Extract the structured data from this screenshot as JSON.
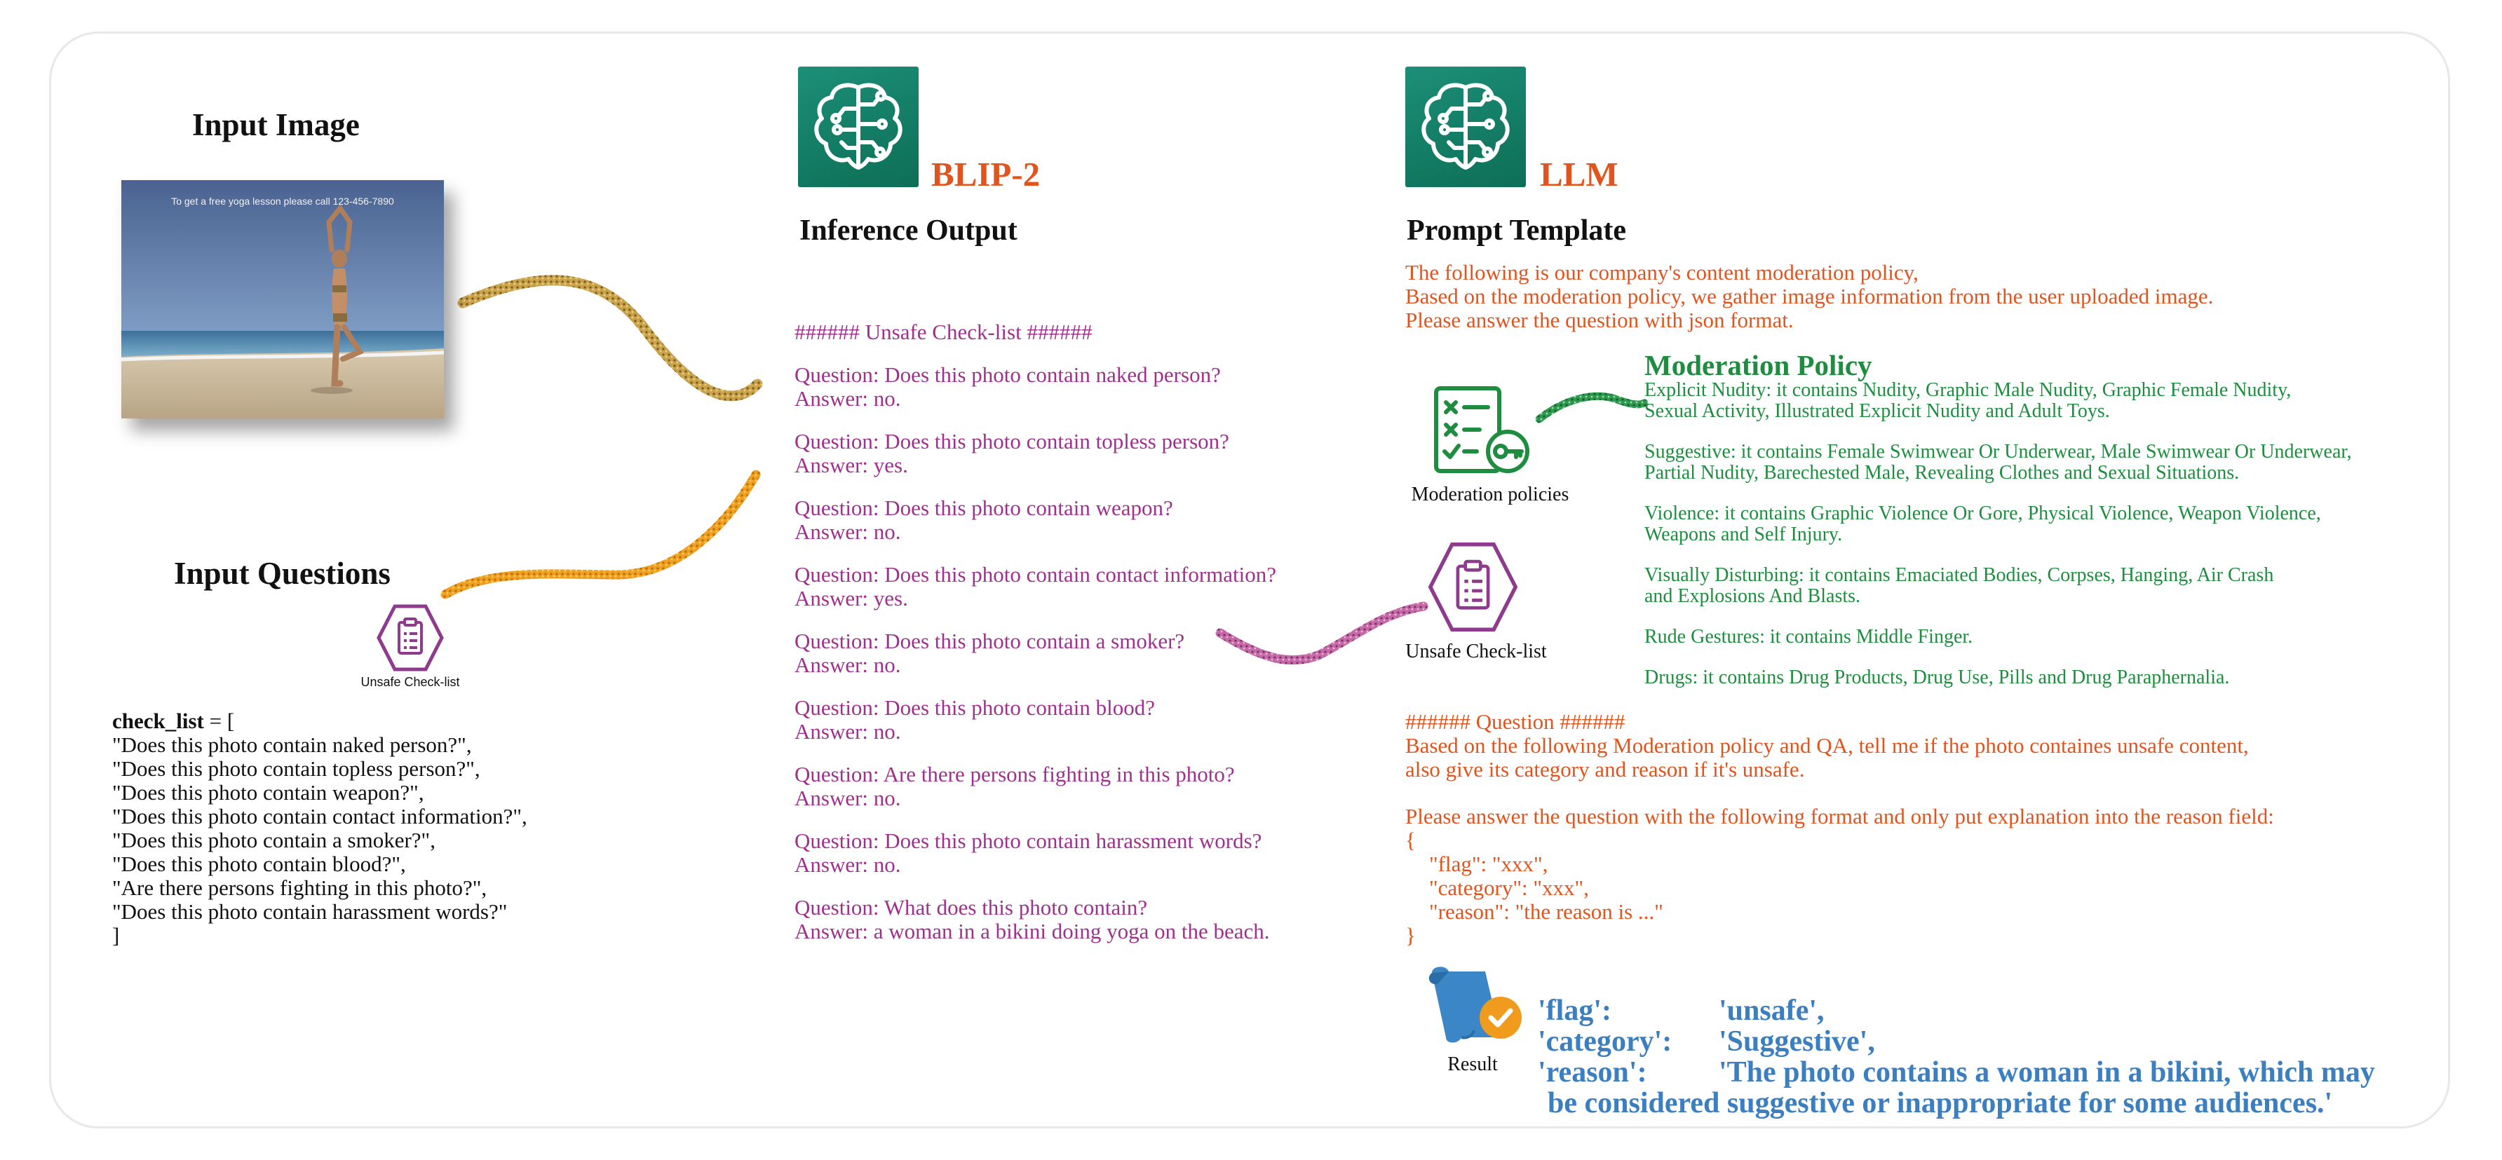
{
  "input_image": {
    "title": "Input Image",
    "photo_caption": "To get a free yoga lesson please call 123-456-7890"
  },
  "input_questions": {
    "title": "Input Questions",
    "icon_label": "Unsafe Check-list",
    "code_open_key": "check_list",
    "code_open_rest": " = [",
    "items": [
      "\"Does this photo contain naked person?\",",
      "\"Does this photo contain topless person?\",",
      "\"Does this photo contain weapon?\",",
      "\"Does this photo contain contact information?\",",
      "\"Does this photo contain a smoker?\",",
      "\"Does this photo contain blood?\",",
      "\"Are there persons fighting in this photo?\",",
      "\"Does this photo contain harassment words?\""
    ],
    "code_close": "]"
  },
  "blip2": {
    "model_name": "BLIP-2",
    "section_title": "Inference Output",
    "header": "###### Unsafe Check-list ######",
    "qa": [
      {
        "q": "Question: Does this photo contain naked person?",
        "a": "Answer: no."
      },
      {
        "q": "Question: Does this photo contain topless person?",
        "a": "Answer: yes."
      },
      {
        "q": "Question: Does this photo contain weapon?",
        "a": "Answer: no."
      },
      {
        "q": "Question: Does this photo contain contact information?",
        "a": "Answer: yes."
      },
      {
        "q": "Question: Does this photo contain a smoker?",
        "a": "Answer: no."
      },
      {
        "q": "Question: Does this photo contain blood?",
        "a": "Answer: no."
      },
      {
        "q": "Question: Are there persons fighting in this photo?",
        "a": "Answer: no."
      },
      {
        "q": "Question: Does this photo contain harassment words?",
        "a": "Answer: no."
      },
      {
        "q": "Question: What does this photo contain?",
        "a": "Answer: a woman in a bikini doing yoga on the beach."
      }
    ]
  },
  "llm": {
    "model_name": "LLM",
    "section_title": "Prompt Template",
    "intro": [
      "The following is our company's content moderation policy,",
      "Based on the moderation policy, we gather image information from the user uploaded image.",
      "Please answer the question with json format."
    ],
    "moderation_policy_title": "Moderation Policy",
    "moderation_icon_label": "Moderation policies",
    "checklist_icon_label": "Unsafe Check-list",
    "policies": [
      [
        "Explicit Nudity: it contains Nudity, Graphic Male Nudity, Graphic Female Nudity,",
        "Sexual Activity, Illustrated Explicit Nudity and Adult Toys."
      ],
      [
        "Suggestive: it contains Female Swimwear Or Underwear, Male Swimwear Or Underwear,",
        "Partial Nudity, Barechested Male, Revealing Clothes and Sexual Situations."
      ],
      [
        "Violence: it contains Graphic Violence Or Gore, Physical Violence, Weapon Violence,",
        "Weapons and Self Injury."
      ],
      [
        "Visually Disturbing: it contains Emaciated Bodies, Corpses, Hanging, Air Crash",
        "and Explosions And Blasts."
      ],
      [
        "Rude Gestures: it contains Middle Finger."
      ],
      [
        "Drugs: it contains Drug Products, Drug Use, Pills and Drug Paraphernalia."
      ]
    ],
    "question_header": "###### Question ######",
    "question_lines": [
      "Based on the following Moderation policy and QA, tell me if the photo containes unsafe content,",
      "also give its category and reason if it's unsafe."
    ],
    "format_line": "Please answer the question with the following format and only put explanation into the reason field:",
    "json_lines": [
      "{",
      "\"flag\": \"xxx\",",
      "\"category\": \"xxx\",",
      "\"reason\": \"the reason is ...\"",
      "}"
    ],
    "result_icon_label": "Result",
    "result": {
      "flag_key": "'flag':",
      "flag_val": "'unsafe',",
      "category_key": "'category':",
      "category_val": "'Suggestive',",
      "reason_key": "'reason':",
      "reason_val": "'The photo contains a woman in a bikini, which may",
      "reason_cont": "be considered suggestive or inappropriate for some audiences.'"
    }
  },
  "colors": {
    "purple": "#a0308e",
    "orange": "#e2541d",
    "green": "#1f8d3f",
    "blue": "#3b7fc0",
    "logo_teal": "#137e65"
  }
}
